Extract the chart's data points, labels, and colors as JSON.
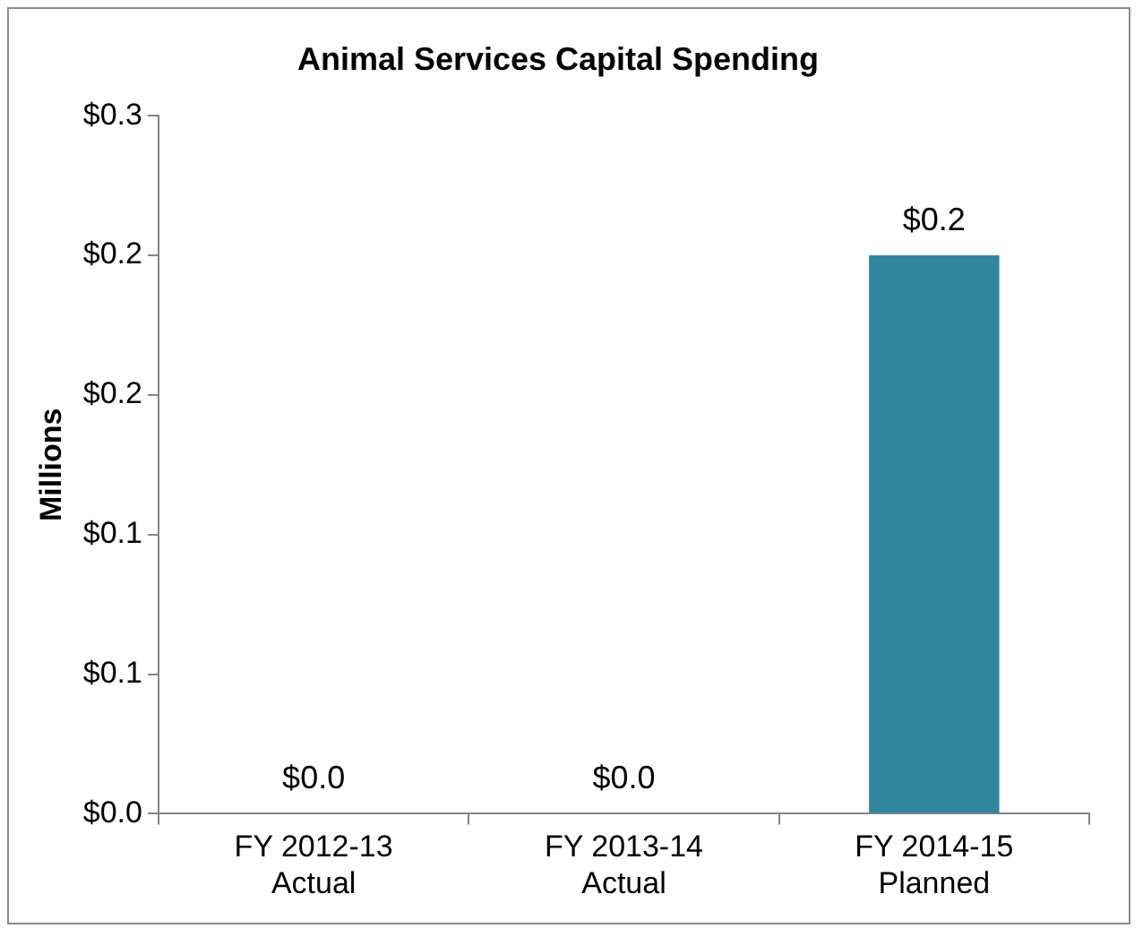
{
  "chart_data": {
    "type": "bar",
    "title": "Animal Services Capital Spending",
    "ylabel": "Millions",
    "categories": [
      "FY 2012-13\nActual",
      "FY 2013-14\nActual",
      "FY 2014-15\nPlanned"
    ],
    "values": [
      0,
      0,
      0.2
    ],
    "color": "#31859c",
    "value_labels": [
      "$0.0",
      "$0.0",
      "$0.2"
    ],
    "ylim": [
      0,
      0.25
    ],
    "yticks": [
      {
        "value": 0,
        "label": "$0.0"
      },
      {
        "value": 0.05,
        "label": "$0.1"
      },
      {
        "value": 0.1,
        "label": "$0.1"
      },
      {
        "value": 0.15,
        "label": "$0.2"
      },
      {
        "value": 0.2,
        "label": "$0.2"
      },
      {
        "value": 0.25,
        "label": "$0.3"
      }
    ],
    "grid": false,
    "legend": false
  }
}
